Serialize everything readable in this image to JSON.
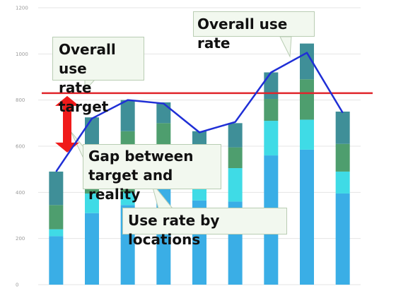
{
  "chart_data": {
    "type": "bar",
    "stacked": true,
    "categories": [
      "",
      "",
      "",
      "",
      "",
      "",
      "",
      "",
      ""
    ],
    "series": [
      {
        "values": [
          210,
          310,
          345,
          415,
          365,
          360,
          560,
          585,
          395
        ],
        "color": "#3aaee6"
      },
      {
        "values": [
          30,
          85,
          55,
          30,
          50,
          145,
          150,
          130,
          95
        ],
        "color": "#3fdbe6"
      },
      {
        "values": [
          105,
          25,
          265,
          255,
          190,
          90,
          95,
          175,
          120
        ],
        "color": "#4e9e6e"
      },
      {
        "values": [
          145,
          305,
          135,
          90,
          60,
          105,
          115,
          155,
          140
        ],
        "color": "#3f8f98"
      }
    ],
    "line": {
      "values": [
        490,
        720,
        800,
        785,
        660,
        705,
        920,
        1005,
        745
      ],
      "color": "#1f2fd6"
    },
    "target": {
      "value": 830,
      "color": "#e0262c"
    },
    "ylim": [
      0,
      1200
    ],
    "yticks": [
      "0",
      "200",
      "400",
      "600",
      "800",
      "1000",
      "1200"
    ],
    "grid": true,
    "annotations": {
      "overall_use_rate": "Overall use rate",
      "target_label": "Overall use\nrate target",
      "gap_label": "Gap between\ntarget and reality",
      "locations_label": "Use rate by locations"
    }
  }
}
